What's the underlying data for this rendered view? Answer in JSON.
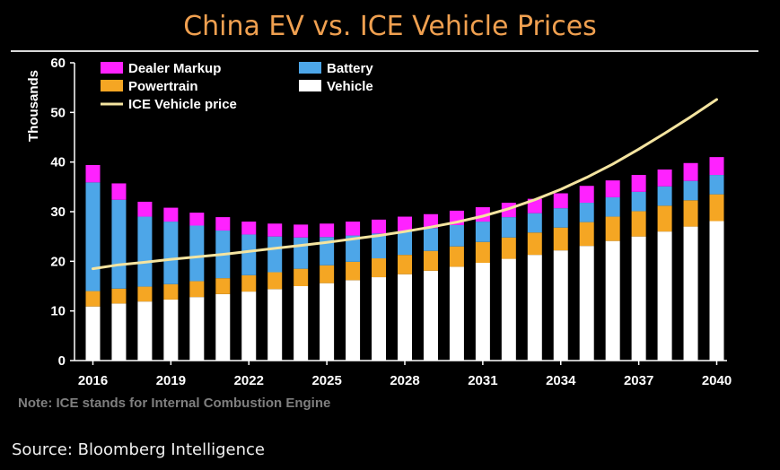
{
  "title": "China EV vs. ICE Vehicle Prices",
  "note": "Note: ICE stands for Internal Combustion Engine",
  "source": "Source: Bloomberg Intelligence",
  "chart_data": {
    "type": "bar",
    "stacked": true,
    "title": "China EV vs. ICE Vehicle Prices",
    "xlabel": "",
    "ylabel": "Thousands",
    "ylim": [
      0,
      60
    ],
    "yticks": [
      0,
      10,
      20,
      30,
      40,
      50,
      60
    ],
    "xtick_labels": [
      "2016",
      "2019",
      "2022",
      "2025",
      "2028",
      "2031",
      "2034",
      "2037",
      "2040"
    ],
    "categories": [
      "2016",
      "2017",
      "2018",
      "2019",
      "2020",
      "2021",
      "2022",
      "2023",
      "2024",
      "2025",
      "2026",
      "2027",
      "2028",
      "2029",
      "2030",
      "2031",
      "2032",
      "2033",
      "2034",
      "2035",
      "2036",
      "2037",
      "2038",
      "2039",
      "2040"
    ],
    "legend_position": "top-left",
    "grid": false,
    "series": [
      {
        "name": "Vehicle",
        "type": "bar",
        "color": "#ffffff",
        "values": [
          10.9,
          11.5,
          11.9,
          12.3,
          12.8,
          13.4,
          13.9,
          14.4,
          15.0,
          15.6,
          16.2,
          16.8,
          17.4,
          18.1,
          18.9,
          19.7,
          20.5,
          21.3,
          22.2,
          23.1,
          24.1,
          25.0,
          26.0,
          27.0,
          28.1
        ]
      },
      {
        "name": "Powertrain",
        "type": "bar",
        "color": "#f5a623",
        "values": [
          3.1,
          3.0,
          3.0,
          3.1,
          3.2,
          3.2,
          3.3,
          3.4,
          3.5,
          3.6,
          3.7,
          3.8,
          3.9,
          4.0,
          4.1,
          4.2,
          4.3,
          4.5,
          4.6,
          4.8,
          4.9,
          5.1,
          5.2,
          5.3,
          5.4
        ]
      },
      {
        "name": "Battery",
        "type": "bar",
        "color": "#4da6e8",
        "values": [
          21.9,
          17.9,
          14.1,
          12.6,
          11.2,
          9.6,
          8.2,
          7.2,
          6.3,
          5.7,
          5.3,
          5.0,
          4.8,
          4.6,
          4.3,
          4.1,
          4.1,
          3.9,
          3.9,
          3.9,
          3.9,
          3.9,
          3.9,
          3.9,
          3.9
        ]
      },
      {
        "name": "Dealer Markup",
        "type": "bar",
        "color": "#ff22ff",
        "values": [
          3.5,
          3.3,
          3.0,
          2.8,
          2.6,
          2.7,
          2.6,
          2.6,
          2.6,
          2.7,
          2.8,
          2.8,
          2.9,
          2.8,
          2.9,
          2.9,
          2.9,
          2.9,
          3.0,
          3.4,
          3.4,
          3.4,
          3.4,
          3.6,
          3.6
        ]
      },
      {
        "name": "ICE Vehicle price",
        "type": "line",
        "color": "#f4e4a0",
        "values": [
          18.5,
          19.3,
          19.8,
          20.4,
          20.9,
          21.4,
          22.0,
          22.6,
          23.2,
          23.8,
          24.5,
          25.2,
          26.0,
          26.9,
          27.9,
          29.1,
          30.6,
          32.4,
          34.5,
          36.9,
          39.6,
          42.6,
          45.8,
          49.1,
          52.6
        ]
      }
    ]
  },
  "colors": {
    "title": "#f0a050",
    "background": "#000000",
    "note": "#7f7f7f"
  }
}
